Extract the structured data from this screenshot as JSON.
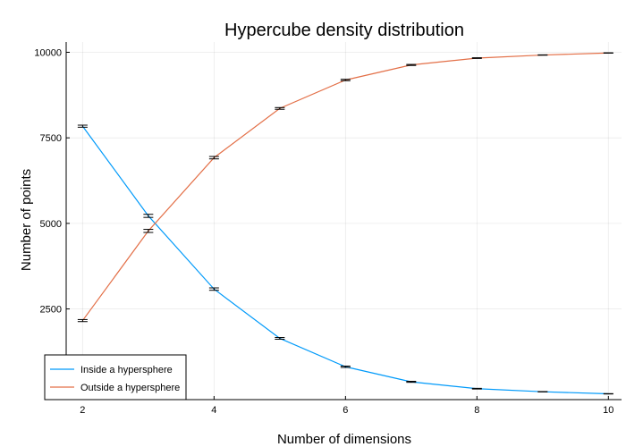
{
  "chart_data": {
    "type": "line",
    "title": "Hypercube density distribution",
    "xlabel": "Number of dimensions",
    "ylabel": "Number of points",
    "xlim": [
      1.75,
      10.2
    ],
    "ylim": [
      -150,
      10300
    ],
    "xticks": [
      2,
      4,
      6,
      8,
      10
    ],
    "yticks": [
      2500,
      5000,
      7500,
      10000
    ],
    "grid": true,
    "legend_position": "bottom-left",
    "x": [
      2,
      3,
      4,
      5,
      6,
      7,
      8,
      9,
      10
    ],
    "series": [
      {
        "name": "Inside a hypersphere",
        "color": "#009AFA",
        "values": [
          7840,
          5220,
          3080,
          1640,
          810,
          370,
          170,
          80,
          20
        ],
        "errors": [
          30,
          45,
          35,
          25,
          20,
          15,
          10,
          5,
          5
        ]
      },
      {
        "name": "Outside a hypersphere",
        "color": "#E36F47",
        "values": [
          2160,
          4780,
          6920,
          8360,
          9190,
          9630,
          9830,
          9920,
          9980
        ],
        "errors": [
          30,
          45,
          35,
          25,
          20,
          15,
          10,
          5,
          5
        ]
      }
    ]
  }
}
